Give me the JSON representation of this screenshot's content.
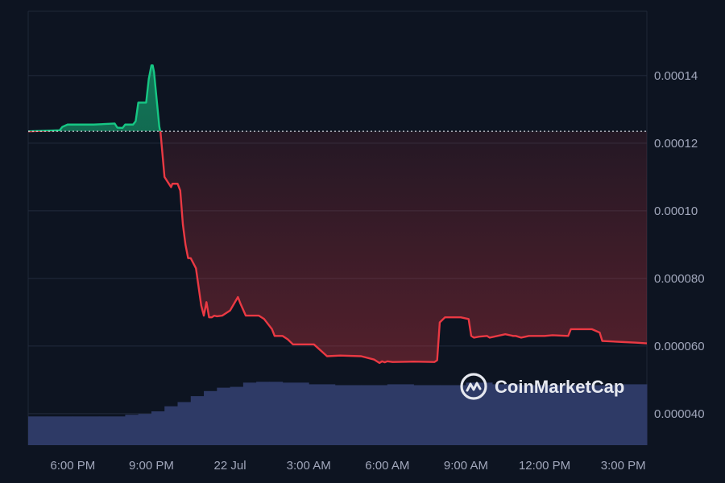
{
  "chart_data": {
    "type": "line",
    "title": "",
    "xlabel": "",
    "ylabel": "",
    "baseline": 0.0001235,
    "ylim": [
      3.07e-05,
      0.000159
    ],
    "y_ticks": [
      {
        "value": 0.00014,
        "label": "0.00014"
      },
      {
        "value": 0.00012,
        "label": "0.00012"
      },
      {
        "value": 0.0001,
        "label": "0.00010"
      },
      {
        "value": 8e-05,
        "label": "0.000080"
      },
      {
        "value": 6e-05,
        "label": "0.000060"
      },
      {
        "value": 4e-05,
        "label": "0.000040"
      }
    ],
    "x_range": [
      16.3,
      39.9
    ],
    "x_ticks": [
      {
        "value": 18,
        "label": "6:00 PM"
      },
      {
        "value": 21,
        "label": "9:00 PM"
      },
      {
        "value": 24,
        "label": "22 Jul"
      },
      {
        "value": 27,
        "label": "3:00 AM"
      },
      {
        "value": 30,
        "label": "6:00 AM"
      },
      {
        "value": 33,
        "label": "9:00 AM"
      },
      {
        "value": 36,
        "label": "12:00 PM"
      },
      {
        "value": 39,
        "label": "3:00 PM"
      }
    ],
    "grid": true,
    "colors": {
      "up": "#16c784",
      "down": "#ea3943",
      "volume": "#2e3a66",
      "grid": "#222b3c",
      "baseline": "#cfd3dc"
    },
    "series": [
      {
        "x": [
          16.3,
          17.5,
          17.6,
          17.8,
          18.2,
          18.8,
          19.6,
          19.7,
          19.9,
          20.0,
          20.3,
          20.4,
          20.5,
          20.7,
          20.8,
          20.9,
          21.0,
          21.05,
          21.1,
          21.2,
          21.3,
          21.35,
          21.5,
          21.75,
          21.8,
          21.9,
          22.0,
          22.1,
          22.2,
          22.3,
          22.4,
          22.5,
          22.7,
          22.9,
          23.0,
          23.1,
          23.2,
          23.3,
          23.4,
          23.5,
          23.7,
          24.0,
          24.3,
          24.4,
          24.6,
          24.9,
          25.1,
          25.3,
          25.5,
          25.6,
          25.7,
          26.0,
          26.2,
          26.4,
          26.6,
          26.9,
          27.2,
          27.7,
          28.2,
          29.0,
          29.5,
          29.7,
          29.8,
          29.9,
          30.0,
          30.2,
          31.0,
          31.8,
          31.9,
          32.0,
          32.2,
          32.5,
          32.8,
          33.1,
          33.2,
          33.3,
          33.5,
          33.8,
          33.9,
          34.2,
          34.5,
          34.8,
          34.9,
          35.1,
          35.4,
          36.0,
          36.3,
          36.9,
          37.0,
          37.8,
          38.1,
          38.2,
          39.0,
          39.5,
          39.9
        ],
        "y": [
          0.0001235,
          0.0001238,
          0.0001248,
          0.0001255,
          0.0001255,
          0.0001255,
          0.0001258,
          0.0001246,
          0.0001245,
          0.0001255,
          0.0001255,
          0.0001265,
          0.000132,
          0.000132,
          0.000132,
          0.000139,
          0.000143,
          0.000143,
          0.000141,
          0.000133,
          0.000125,
          0.000123,
          0.00011,
          0.000107,
          0.000108,
          0.000108,
          0.000108,
          0.000106,
          9.6e-05,
          9e-05,
          8.6e-05,
          8.6e-05,
          8.3e-05,
          7.2e-05,
          6.9e-05,
          7.3e-05,
          6.85e-05,
          6.85e-05,
          6.9e-05,
          6.88e-05,
          6.9e-05,
          7.05e-05,
          7.45e-05,
          7.25e-05,
          6.9e-05,
          6.9e-05,
          6.9e-05,
          6.8e-05,
          6.6e-05,
          6.5e-05,
          6.3e-05,
          6.3e-05,
          6.2e-05,
          6.05e-05,
          6.05e-05,
          6.05e-05,
          6.05e-05,
          5.7e-05,
          5.72e-05,
          5.7e-05,
          5.6e-05,
          5.5e-05,
          5.55e-05,
          5.52e-05,
          5.55e-05,
          5.53e-05,
          5.54e-05,
          5.53e-05,
          5.58e-05,
          6.7e-05,
          6.85e-05,
          6.85e-05,
          6.85e-05,
          6.8e-05,
          6.3e-05,
          6.25e-05,
          6.28e-05,
          6.3e-05,
          6.25e-05,
          6.3e-05,
          6.35e-05,
          6.3e-05,
          6.3e-05,
          6.25e-05,
          6.3e-05,
          6.3e-05,
          6.32e-05,
          6.3e-05,
          6.5e-05,
          6.5e-05,
          6.4e-05,
          6.15e-05,
          6.12e-05,
          6.1e-05,
          6.08e-05
        ]
      }
    ],
    "volume": {
      "x": [
        16.3,
        17.0,
        18.0,
        19.0,
        20.0,
        20.5,
        21.0,
        21.5,
        22.0,
        22.5,
        23.0,
        23.5,
        24.0,
        24.5,
        25.0,
        25.5,
        26.0,
        27.0,
        28.0,
        29.0,
        30.0,
        31.0,
        32.0,
        33.0,
        34.0,
        35.0,
        36.0,
        37.0,
        38.0,
        39.0,
        39.9
      ],
      "height_frac": [
        0.34,
        0.34,
        0.34,
        0.34,
        0.36,
        0.37,
        0.4,
        0.46,
        0.51,
        0.58,
        0.64,
        0.68,
        0.69,
        0.74,
        0.75,
        0.75,
        0.74,
        0.72,
        0.71,
        0.71,
        0.72,
        0.71,
        0.71,
        0.74,
        0.72,
        0.71,
        0.71,
        0.71,
        0.71,
        0.72,
        0.72
      ]
    }
  },
  "watermark": {
    "text": "CoinMarketCap",
    "icon": "coinmarketcap-logo-icon"
  }
}
